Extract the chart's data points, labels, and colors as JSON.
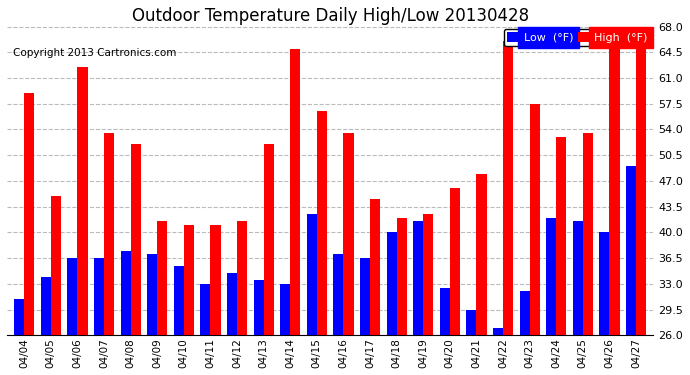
{
  "title": "Outdoor Temperature Daily High/Low 20130428",
  "copyright": "Copyright 2013 Cartronics.com",
  "dates": [
    "04/04",
    "04/05",
    "04/06",
    "04/07",
    "04/08",
    "04/09",
    "04/10",
    "04/11",
    "04/12",
    "04/13",
    "04/14",
    "04/15",
    "04/16",
    "04/17",
    "04/18",
    "04/19",
    "04/20",
    "04/21",
    "04/22",
    "04/23",
    "04/24",
    "04/25",
    "04/26",
    "04/27"
  ],
  "high": [
    59.0,
    45.0,
    62.5,
    53.5,
    52.0,
    41.5,
    41.0,
    41.0,
    41.5,
    52.0,
    65.0,
    56.5,
    53.5,
    44.5,
    42.0,
    42.5,
    46.0,
    48.0,
    66.0,
    57.5,
    53.0,
    53.5,
    68.0,
    65.5
  ],
  "low": [
    31.0,
    34.0,
    36.5,
    36.5,
    37.5,
    37.0,
    35.5,
    33.0,
    34.5,
    33.5,
    33.0,
    42.5,
    37.0,
    36.5,
    40.0,
    41.5,
    32.5,
    29.5,
    27.0,
    32.0,
    42.0,
    41.5,
    40.0,
    49.0
  ],
  "ylim": [
    26.0,
    68.0
  ],
  "ybase": 26.0,
  "yticks": [
    26.0,
    29.5,
    33.0,
    36.5,
    40.0,
    43.5,
    47.0,
    50.5,
    54.0,
    57.5,
    61.0,
    64.5,
    68.0
  ],
  "high_color": "#ff0000",
  "low_color": "#0000ff",
  "background_color": "#ffffff",
  "plot_bg_color": "#ffffff",
  "grid_color": "#bbbbbb",
  "title_fontsize": 12,
  "copyright_fontsize": 7.5,
  "legend_low_label": "Low  (°F)",
  "legend_high_label": "High  (°F)"
}
